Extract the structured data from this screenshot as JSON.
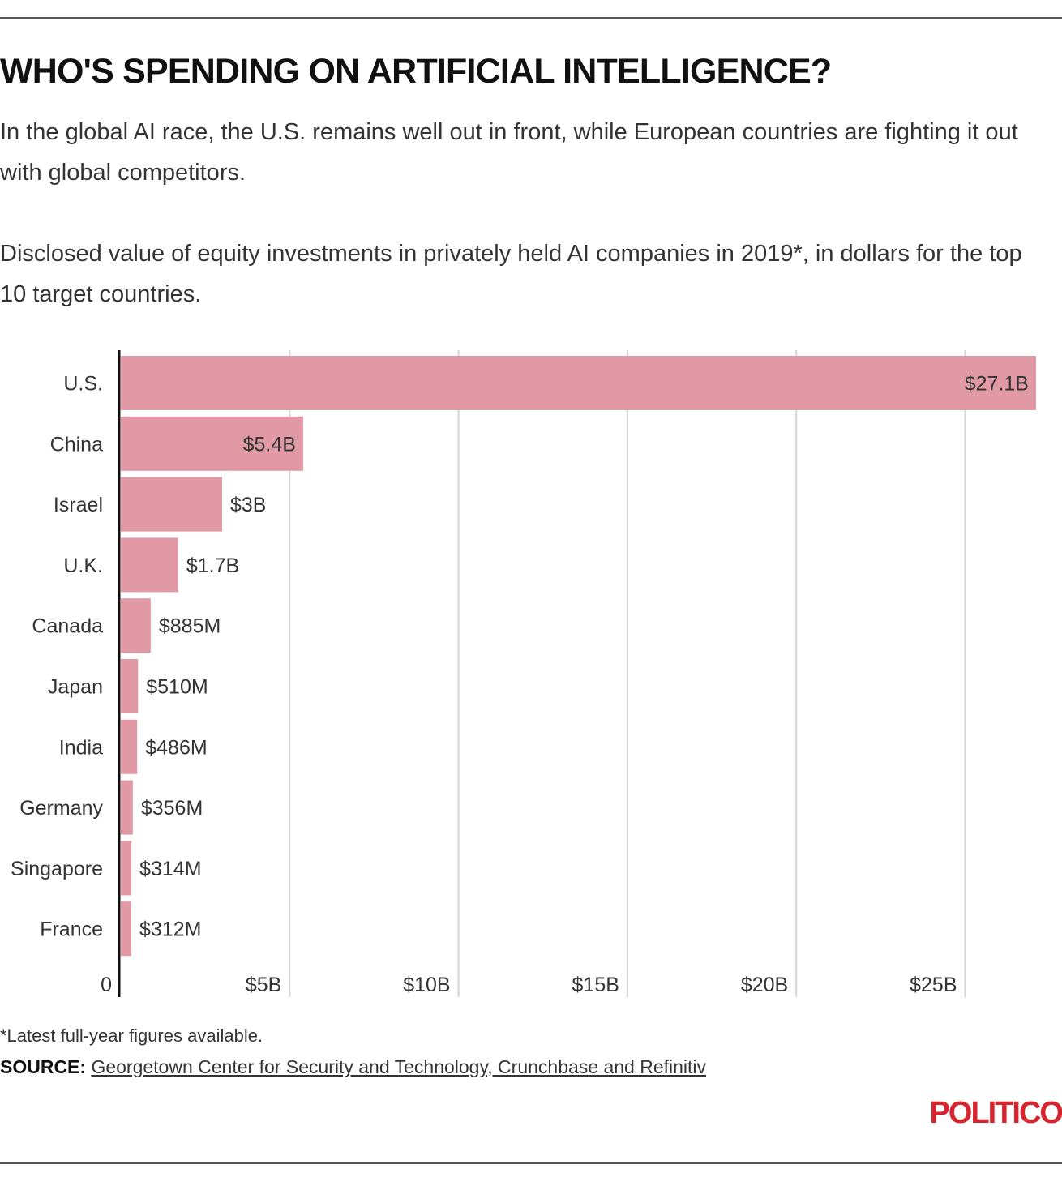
{
  "header": {
    "title": "WHO'S SPENDING ON ARTIFICIAL INTELLIGENCE?",
    "subtitle": "In the global AI race, the U.S. remains well out in front, while European countries are fighting it out with global competitors.",
    "description": "Disclosed value of equity investments in privately held AI companies in 2019*, in dollars for the top 10 target countries."
  },
  "chart_data": {
    "type": "bar",
    "orientation": "horizontal",
    "categories": [
      "U.S.",
      "China",
      "Israel",
      "U.K.",
      "Canada",
      "Japan",
      "India",
      "Germany",
      "Singapore",
      "France"
    ],
    "values": [
      27.1,
      5.4,
      3.0,
      1.7,
      0.885,
      0.51,
      0.486,
      0.356,
      0.314,
      0.312
    ],
    "value_unit": "billions USD",
    "data_labels": [
      "$27.1B",
      "$5.4B",
      "$3B",
      "$1.7B",
      "$885M",
      "$510M",
      "$486M",
      "$356M",
      "$314M",
      "$312M"
    ],
    "xlim": [
      0,
      27.1
    ],
    "x_ticks": [
      0,
      5,
      10,
      15,
      20,
      25
    ],
    "x_tick_labels": [
      "0",
      "$5B",
      "$10B",
      "$15B",
      "$20B",
      "$25B"
    ],
    "bar_color": "#e099a5",
    "grid": true,
    "grid_axis": "x",
    "legend": "none"
  },
  "footer": {
    "note": "*Latest full-year figures available.",
    "source_label": "SOURCE:",
    "source_text": "Georgetown Center for Security and Technology, Crunchbase and Refinitiv",
    "logo": "POLITICO"
  },
  "colors": {
    "brand": "#d6252e",
    "bar": "#e099a5",
    "axis": "#111111",
    "grid": "#d4d4d4"
  }
}
